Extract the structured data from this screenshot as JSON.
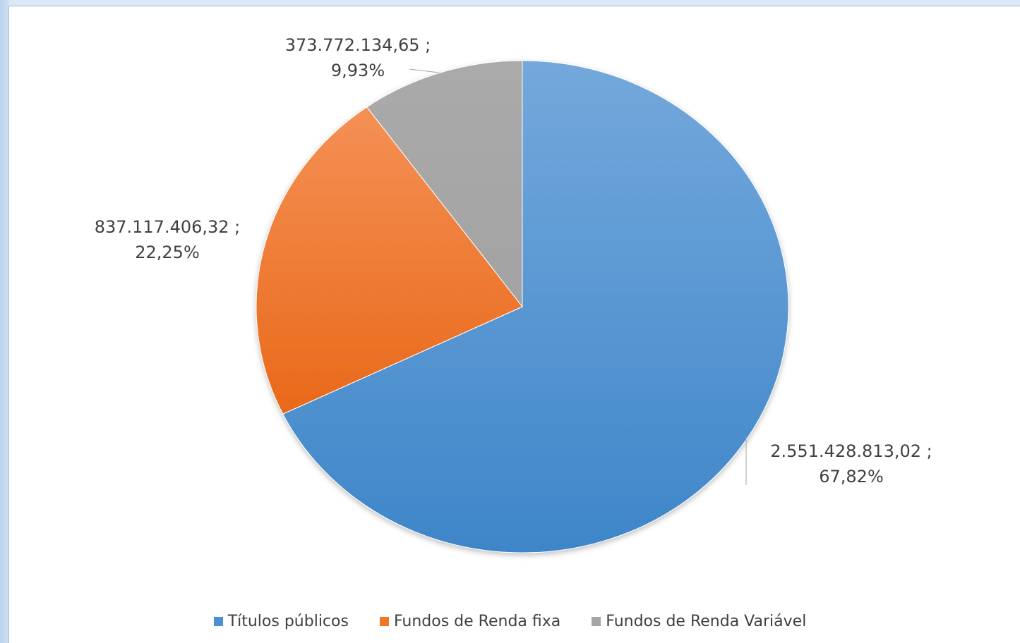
{
  "chart_data": {
    "type": "pie",
    "slices": [
      {
        "name": "Títulos públicos",
        "value": 2551428813.02,
        "percent": 67.82,
        "value_label": "2.551.428.813,02 ;",
        "percent_label": "67,82%",
        "color": "#4a90d4"
      },
      {
        "name": "Fundos de Renda fixa",
        "value": 837117406.32,
        "percent": 22.25,
        "value_label": "837.117.406,32 ;",
        "percent_label": "22,25%",
        "color": "#ef7622"
      },
      {
        "name": "Fundos de Renda Variável",
        "value": 373772134.65,
        "percent": 9.93,
        "value_label": "373.772.134,65 ;",
        "percent_label": "9,93%",
        "color": "#a5a5a5"
      }
    ],
    "legend": {
      "position": "bottom",
      "entries": [
        "Títulos públicos",
        "Fundos de Renda fixa",
        "Fundos de Renda Variável"
      ]
    },
    "start_angle": "12 o'clock",
    "direction": "clockwise"
  }
}
